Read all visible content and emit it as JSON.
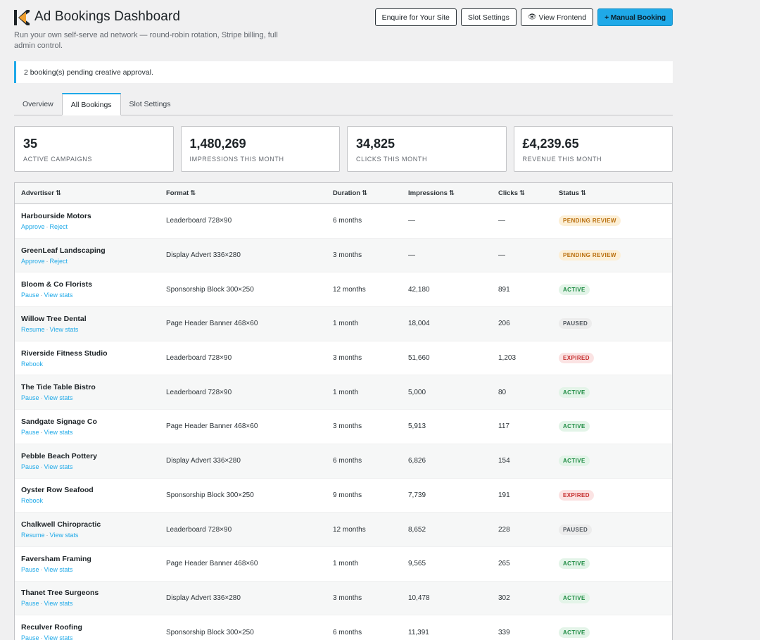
{
  "header": {
    "title": "Ad Bookings Dashboard",
    "subtitle": "Run your own self-serve ad network — round-robin rotation, Stripe billing, full admin control.",
    "buttons": {
      "enquire": "Enquire for Your Site",
      "slot_settings": "Slot Settings",
      "view_frontend": "View Frontend",
      "manual_booking": "+ Manual Booking"
    }
  },
  "notice": "2 booking(s) pending creative approval.",
  "tabs": [
    "Overview",
    "All Bookings",
    "Slot Settings"
  ],
  "stats": [
    {
      "value": "35",
      "label": "Active Campaigns"
    },
    {
      "value": "1,480,269",
      "label": "Impressions This Month"
    },
    {
      "value": "34,825",
      "label": "Clicks This Month"
    },
    {
      "value": "£4,239.65",
      "label": "Revenue This Month"
    }
  ],
  "table": {
    "columns": [
      "Advertiser",
      "Format",
      "Duration",
      "Impressions",
      "Clicks",
      "Status"
    ],
    "sort_icon": "⇅",
    "rows": [
      {
        "advertiser": "Harbourside Motors",
        "actions": [
          "Approve",
          "Reject"
        ],
        "format": "Leaderboard 728×90",
        "duration": "6 months",
        "impressions": "—",
        "clicks": "—",
        "status": "Pending Review",
        "status_key": "pending"
      },
      {
        "advertiser": "GreenLeaf Landscaping",
        "actions": [
          "Approve",
          "Reject"
        ],
        "format": "Display Advert 336×280",
        "duration": "3 months",
        "impressions": "—",
        "clicks": "—",
        "status": "Pending Review",
        "status_key": "pending"
      },
      {
        "advertiser": "Bloom & Co Florists",
        "actions": [
          "Pause",
          "View stats"
        ],
        "format": "Sponsorship Block 300×250",
        "duration": "12 months",
        "impressions": "42,180",
        "clicks": "891",
        "status": "Active",
        "status_key": "active"
      },
      {
        "advertiser": "Willow Tree Dental",
        "actions": [
          "Resume",
          "View stats"
        ],
        "format": "Page Header Banner 468×60",
        "duration": "1 month",
        "impressions": "18,004",
        "clicks": "206",
        "status": "Paused",
        "status_key": "paused"
      },
      {
        "advertiser": "Riverside Fitness Studio",
        "actions": [
          "Rebook"
        ],
        "format": "Leaderboard 728×90",
        "duration": "3 months",
        "impressions": "51,660",
        "clicks": "1,203",
        "status": "Expired",
        "status_key": "expired"
      },
      {
        "advertiser": "The Tide Table Bistro",
        "actions": [
          "Pause",
          "View stats"
        ],
        "format": "Leaderboard 728×90",
        "duration": "1 month",
        "impressions": "5,000",
        "clicks": "80",
        "status": "Active",
        "status_key": "active"
      },
      {
        "advertiser": "Sandgate Signage Co",
        "actions": [
          "Pause",
          "View stats"
        ],
        "format": "Page Header Banner 468×60",
        "duration": "3 months",
        "impressions": "5,913",
        "clicks": "117",
        "status": "Active",
        "status_key": "active"
      },
      {
        "advertiser": "Pebble Beach Pottery",
        "actions": [
          "Pause",
          "View stats"
        ],
        "format": "Display Advert 336×280",
        "duration": "6 months",
        "impressions": "6,826",
        "clicks": "154",
        "status": "Active",
        "status_key": "active"
      },
      {
        "advertiser": "Oyster Row Seafood",
        "actions": [
          "Rebook"
        ],
        "format": "Sponsorship Block 300×250",
        "duration": "9 months",
        "impressions": "7,739",
        "clicks": "191",
        "status": "Expired",
        "status_key": "expired"
      },
      {
        "advertiser": "Chalkwell Chiropractic",
        "actions": [
          "Resume",
          "View stats"
        ],
        "format": "Leaderboard 728×90",
        "duration": "12 months",
        "impressions": "8,652",
        "clicks": "228",
        "status": "Paused",
        "status_key": "paused"
      },
      {
        "advertiser": "Faversham Framing",
        "actions": [
          "Pause",
          "View stats"
        ],
        "format": "Page Header Banner 468×60",
        "duration": "1 month",
        "impressions": "9,565",
        "clicks": "265",
        "status": "Active",
        "status_key": "active"
      },
      {
        "advertiser": "Thanet Tree Surgeons",
        "actions": [
          "Pause",
          "View stats"
        ],
        "format": "Display Advert 336×280",
        "duration": "3 months",
        "impressions": "10,478",
        "clicks": "302",
        "status": "Active",
        "status_key": "active"
      },
      {
        "advertiser": "Reculver Roofing",
        "actions": [
          "Pause",
          "View stats"
        ],
        "format": "Sponsorship Block 300×250",
        "duration": "6 months",
        "impressions": "11,391",
        "clicks": "339",
        "status": "Active",
        "status_key": "active"
      }
    ]
  },
  "colors": {
    "accent": "#1fa9e8",
    "logo_dark": "#1d2327",
    "logo_orange": "#f0a030"
  },
  "icons": {
    "logo": "brand-logo-icon",
    "view_frontend": "eye-icon",
    "sort": "sort-arrows-icon"
  }
}
